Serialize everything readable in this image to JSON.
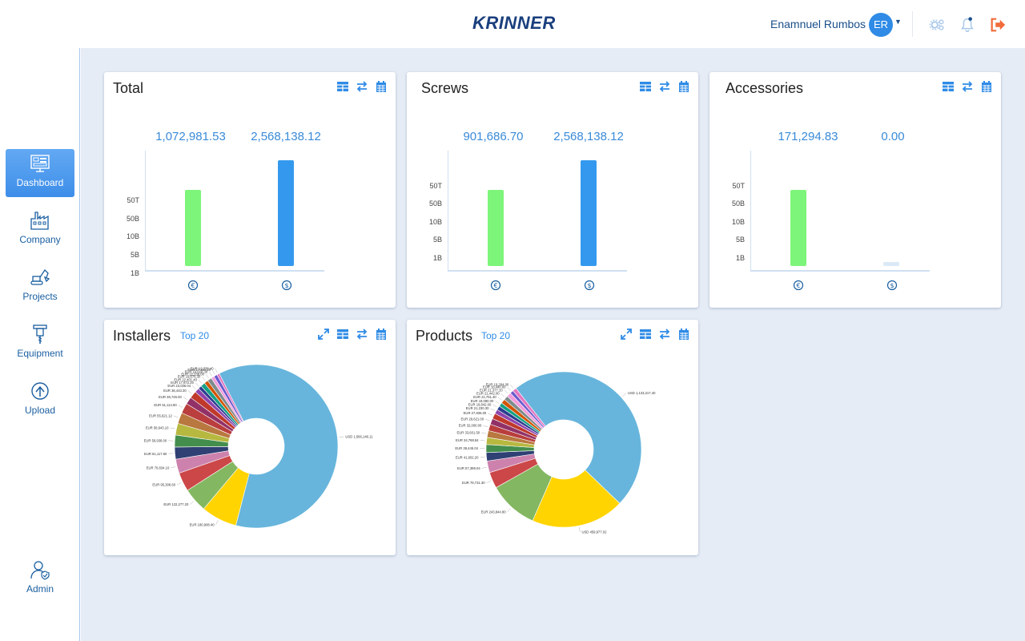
{
  "header": {
    "logo": "KRINNER",
    "user_name": "Enamnuel Rumbos",
    "avatar_initials": "ER"
  },
  "sidebar": {
    "items": [
      {
        "label": "Dashboard",
        "icon": "dashboard-icon",
        "active": true
      },
      {
        "label": "Company",
        "icon": "factory-icon",
        "active": false
      },
      {
        "label": "Projects",
        "icon": "excavator-icon",
        "active": false
      },
      {
        "label": "Equipment",
        "icon": "drill-icon",
        "active": false
      },
      {
        "label": "Upload",
        "icon": "cloud-upload-icon",
        "active": false
      },
      {
        "label": "Admin",
        "icon": "admin-user-icon",
        "active": false
      }
    ]
  },
  "colors": {
    "accent": "#2f8be6",
    "bar_green": "#7df57a",
    "bar_blue": "#3499ee",
    "bar_empty": "#dbe9f6",
    "logout": "#f26b3a"
  },
  "cards": {
    "total": {
      "title": "Total",
      "value_1": "1,072,981.53",
      "value_2": "2,568,138.12",
      "y_ticks": [
        "50T",
        "50B",
        "10B",
        "5B",
        "1B"
      ]
    },
    "screws": {
      "title": "Screws",
      "value_1": "901,686.70",
      "value_2": "2,568,138.12",
      "y_ticks": [
        "50T",
        "50B",
        "10B",
        "5B",
        "1B"
      ]
    },
    "accessories": {
      "title": "Accessories",
      "value_1": "171,294.83",
      "value_2": "0.00",
      "y_ticks": [
        "50T",
        "50B",
        "10B",
        "5B",
        "1B"
      ]
    },
    "installers": {
      "title": "Installers",
      "subtitle": "Top 20"
    },
    "products": {
      "title": "Products",
      "subtitle": "Top 20"
    }
  },
  "chart_data": [
    {
      "type": "bar",
      "title": "Total",
      "categories": [
        "EUR",
        "USD"
      ],
      "values": [
        1072981.53,
        2568138.12
      ],
      "y_scale": "log",
      "y_tick_labels": [
        "1B",
        "5B",
        "10B",
        "50B",
        "50T"
      ]
    },
    {
      "type": "bar",
      "title": "Screws",
      "categories": [
        "EUR",
        "USD"
      ],
      "values": [
        901686.7,
        2568138.12
      ],
      "y_scale": "log",
      "y_tick_labels": [
        "1B",
        "5B",
        "10B",
        "50B",
        "50T"
      ]
    },
    {
      "type": "bar",
      "title": "Accessories",
      "categories": [
        "EUR",
        "USD"
      ],
      "values": [
        171294.83,
        0.0
      ],
      "y_scale": "log",
      "y_tick_labels": [
        "1B",
        "5B",
        "10B",
        "50B",
        "50T"
      ]
    },
    {
      "type": "pie",
      "title": "Installers",
      "donut": true,
      "slices": [
        {
          "label": "USD 1,566,146.11",
          "value": 1566146.11,
          "color": "#67b5dc"
        },
        {
          "label": "EUR 180,908.40",
          "value": 180908.4,
          "color": "#ffd400"
        },
        {
          "label": "EUR 122,277.20",
          "value": 122277.2,
          "color": "#84b761"
        },
        {
          "label": "EUR 95,308.60",
          "value": 95308.6,
          "color": "#cc4748"
        },
        {
          "label": "EUR 70,834.10",
          "value": 70834.1,
          "color": "#cd82ad"
        },
        {
          "label": "EUR 61,117.50",
          "value": 61117.5,
          "color": "#2f4074"
        },
        {
          "label": "EUR 59,938.00",
          "value": 59938.0,
          "color": "#448e4d"
        },
        {
          "label": "EUR 58,943.10",
          "value": 58943.1,
          "color": "#b7b83f"
        },
        {
          "label": "EUR 55,621.12",
          "value": 55621.12,
          "color": "#b9783f"
        },
        {
          "label": "EUR 51,114.80",
          "value": 51114.8,
          "color": "#b93e3d"
        },
        {
          "label": "EUR 36,745.00",
          "value": 36745.0,
          "color": "#913167"
        },
        {
          "label": "EUR 36,443.30",
          "value": 36443.3,
          "color": "#c0392b"
        },
        {
          "label": "EUR 23,036.04",
          "value": 23036.04,
          "color": "#8e44ad"
        },
        {
          "label": "EUR 17,672.20",
          "value": 17672.2,
          "color": "#2c3e90"
        },
        {
          "label": "EUR 22,401.40",
          "value": 22401.4,
          "color": "#16a085"
        },
        {
          "label": "EUR 19,676.30",
          "value": 19676.3,
          "color": "#d35400"
        },
        {
          "label": "EUR 22,236.00",
          "value": 22236.0,
          "color": "#7f8c8d"
        },
        {
          "label": "EUR 15,618.30",
          "value": 15618.3,
          "color": "#f39cdc"
        },
        {
          "label": "EUR 17,281.20",
          "value": 17281.2,
          "color": "#6a5acd"
        },
        {
          "label": "EUR 12,338.40",
          "value": 12338.4,
          "color": "#e377c2"
        }
      ]
    },
    {
      "type": "pie",
      "title": "Products",
      "donut": true,
      "slices": [
        {
          "label": "USD 1,133,217.40",
          "value": 1133217.4,
          "color": "#67b5dc"
        },
        {
          "label": "USD 459,977.02",
          "value": 459977.02,
          "color": "#ffd400"
        },
        {
          "label": "EUR 243,844.80",
          "value": 243844.8,
          "color": "#84b761"
        },
        {
          "label": "EUR 79,731.30",
          "value": 79731.3,
          "color": "#cc4748"
        },
        {
          "label": "EUR 57,399.04",
          "value": 57399.04,
          "color": "#cd82ad"
        },
        {
          "label": "EUR 41,602.20",
          "value": 41602.2,
          "color": "#2f4074"
        },
        {
          "label": "EUR 39,445.04",
          "value": 39445.04,
          "color": "#448e4d"
        },
        {
          "label": "EUR 34,788.84",
          "value": 34788.84,
          "color": "#b7b83f"
        },
        {
          "label": "EUR 33,601.50",
          "value": 33601.5,
          "color": "#b9783f"
        },
        {
          "label": "EUR 32,000.00",
          "value": 32000.0,
          "color": "#b93e3d"
        },
        {
          "label": "EUR 29,621.00",
          "value": 29621.0,
          "color": "#913167"
        },
        {
          "label": "EUR 27,836.00",
          "value": 27836.0,
          "color": "#c0392b"
        },
        {
          "label": "EUR 21,230.30",
          "value": 21230.3,
          "color": "#8e44ad"
        },
        {
          "label": "EUR 19,842.00",
          "value": 19842.0,
          "color": "#2c3e90"
        },
        {
          "label": "EUR 19,080.00",
          "value": 19080.0,
          "color": "#16a085"
        },
        {
          "label": "EUR 21,761.40",
          "value": 21761.4,
          "color": "#d35400"
        },
        {
          "label": "EUR 21,442.00",
          "value": 21442.0,
          "color": "#7f8c8d"
        },
        {
          "label": "EUR 21,377.20",
          "value": 21377.2,
          "color": "#f39cdc"
        },
        {
          "label": "EUR 16,440.00",
          "value": 16440.0,
          "color": "#6a5acd"
        },
        {
          "label": "EUR 19,284.00",
          "value": 19284.0,
          "color": "#e377c2"
        }
      ]
    }
  ]
}
